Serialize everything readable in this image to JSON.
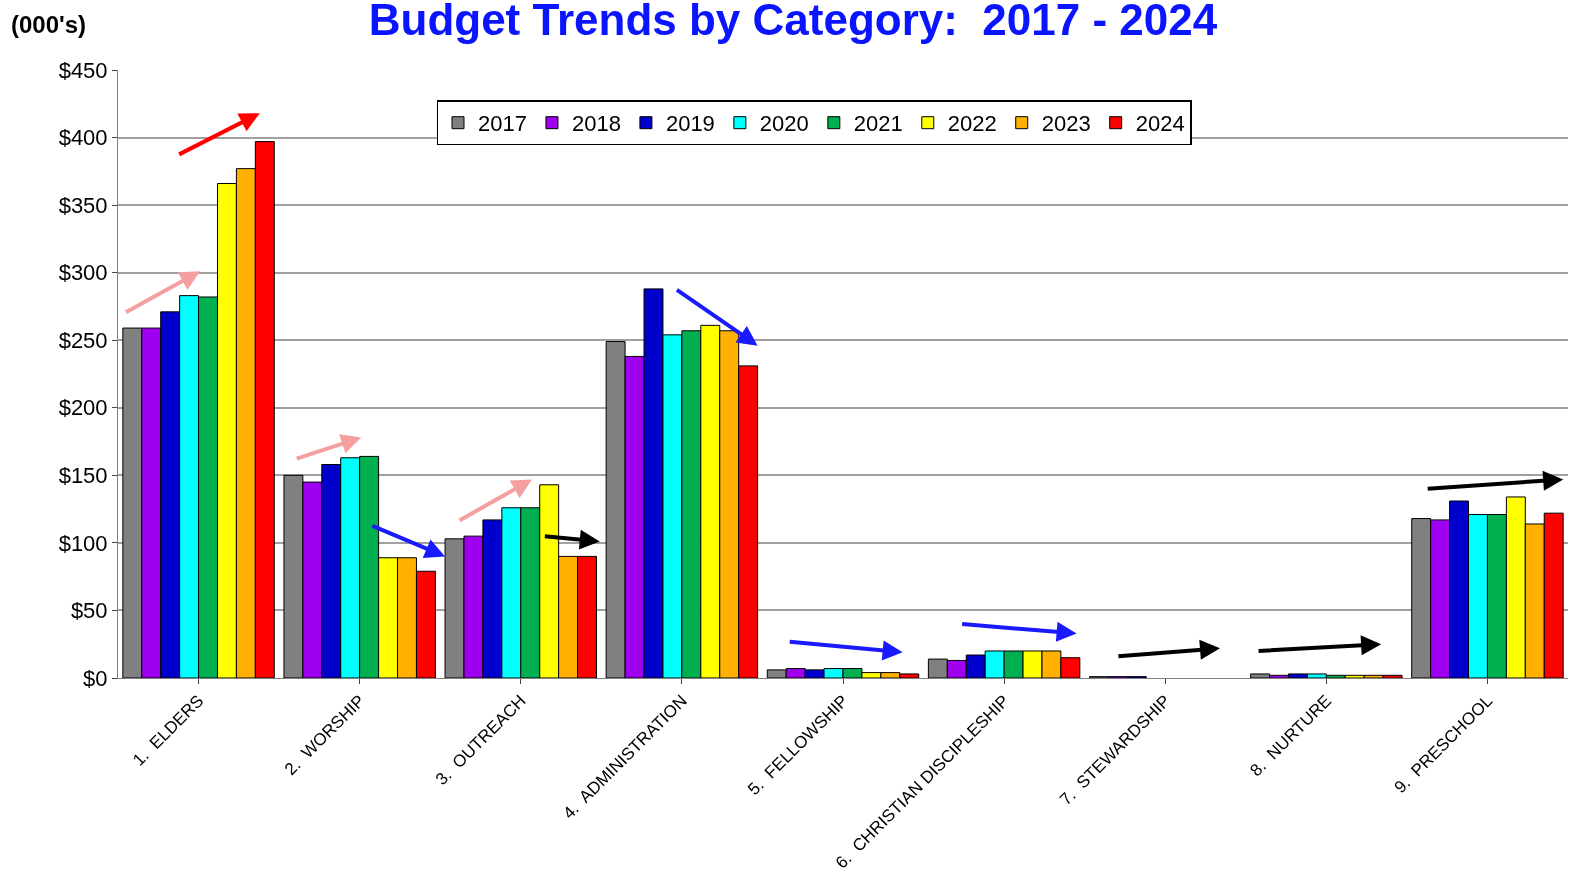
{
  "chart_data": {
    "type": "bar",
    "title": "Budget Trends by Category:  2017 - 2024",
    "ylabel": "(000's)",
    "categories": [
      "1.  ELDERS",
      "2.  WORSHIP",
      "3.  OUTREACH",
      "4.  ADMINISTRATION",
      "5.  FELLOWSHIP",
      "6.  CHRISTIAN DISCIPLESHIP",
      "7.  STEWARDSHIP",
      "8.  NURTURE",
      "9.  PRESCHOOL"
    ],
    "series": [
      {
        "name": "2017",
        "color": "#808080",
        "values": [
          259,
          150,
          103,
          249,
          6,
          14,
          1,
          3,
          118
        ]
      },
      {
        "name": "2018",
        "color": "#a000f0",
        "values": [
          259,
          145,
          105,
          238,
          7,
          13,
          1,
          2,
          117
        ]
      },
      {
        "name": "2019",
        "color": "#0000cc",
        "values": [
          271,
          158,
          117,
          288,
          6,
          17,
          1,
          3,
          131
        ]
      },
      {
        "name": "2020",
        "color": "#00ffff",
        "values": [
          283,
          163,
          126,
          254,
          7,
          20,
          null,
          3,
          121
        ]
      },
      {
        "name": "2021",
        "color": "#00b050",
        "values": [
          282,
          164,
          126,
          257,
          7,
          20,
          null,
          2,
          121
        ]
      },
      {
        "name": "2022",
        "color": "#ffff00",
        "values": [
          366,
          89,
          143,
          261,
          4,
          20,
          null,
          2,
          134
        ]
      },
      {
        "name": "2023",
        "color": "#ffb000",
        "values": [
          377,
          89,
          90,
          257,
          4,
          20,
          null,
          2,
          114
        ]
      },
      {
        "name": "2024",
        "color": "#ff0000",
        "values": [
          397,
          79,
          90,
          231,
          3,
          15,
          null,
          2,
          122
        ]
      }
    ],
    "ylim": [
      0,
      450
    ],
    "yticks": [
      {
        "value": 0,
        "label": "$0"
      },
      {
        "value": 50,
        "label": "$50"
      },
      {
        "value": 100,
        "label": "$100"
      },
      {
        "value": 150,
        "label": "$150"
      },
      {
        "value": 200,
        "label": "$200"
      },
      {
        "value": 250,
        "label": "$250"
      },
      {
        "value": 300,
        "label": "$300"
      },
      {
        "value": 350,
        "label": "$350"
      },
      {
        "value": 400,
        "label": "$400"
      },
      {
        "value": 450,
        "label": "$450"
      }
    ],
    "grid": "y",
    "legend": "top"
  }
}
